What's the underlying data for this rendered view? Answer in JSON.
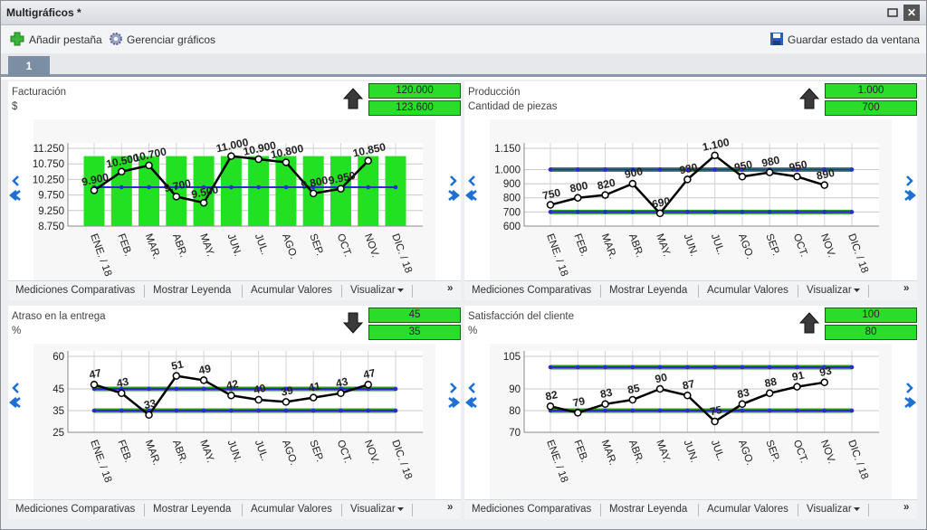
{
  "window": {
    "title": "Multigráficos *",
    "close": "✕"
  },
  "toolbar": {
    "add_tab": "Añadir pestaña",
    "manage": "Gerenciar gráficos",
    "save": "Guardar estado da ventana"
  },
  "tabs": [
    "1"
  ],
  "panel_toolbar": {
    "items": [
      "Mediciones Comparativas",
      "Mostrar Leyenda",
      "Acumular Valores",
      "Visualizar"
    ],
    "more": "»"
  },
  "chart_data": [
    {
      "type": "line",
      "title": "Facturación",
      "subtitle": "$",
      "arrow": "up",
      "targets": [
        "120.000",
        "123.600"
      ],
      "categories": [
        "ENE. / 18",
        "FEB.",
        "MAR.",
        "ABR.",
        "MAY.",
        "JUN.",
        "JUL.",
        "AGO.",
        "SEP.",
        "OCT.",
        "NOV.",
        "DIC. / 18"
      ],
      "bars": {
        "color": "#22e022",
        "values": [
          11000,
          11000,
          11000,
          11000,
          11000,
          11000,
          11000,
          11000,
          11000,
          11000,
          11000,
          11000
        ]
      },
      "series": [
        {
          "color": "#000000",
          "values": [
            9900,
            10500,
            10700,
            9700,
            9500,
            11000,
            10900,
            10800,
            9800,
            9950,
            10850,
            null
          ],
          "value_labels": [
            "9.900",
            "10.500",
            "10.700",
            "9.700",
            "9.500",
            "11.000",
            "10.900",
            "10.800",
            "9.800",
            "9.950",
            "10.850",
            null
          ]
        }
      ],
      "reference_lines": [
        10000
      ],
      "reference_color": "#2b2bd0",
      "reference_band_color": null,
      "ylim": [
        8750,
        11250
      ],
      "yticks": [
        {
          "value": 8750,
          "label": "8.750"
        },
        {
          "value": 9250,
          "label": "9.250"
        },
        {
          "value": 9750,
          "label": "9.750"
        },
        {
          "value": 10250,
          "label": "10.250"
        },
        {
          "value": 10750,
          "label": "10.750"
        },
        {
          "value": 11250,
          "label": "11.250"
        }
      ],
      "grid": true
    },
    {
      "type": "line",
      "title": "Producción",
      "subtitle": "Cantidad de piezas",
      "arrow": "up",
      "targets": [
        "1.000",
        "700"
      ],
      "categories": [
        "ENE. / 18",
        "FEB.",
        "MAR.",
        "ABR.",
        "MAY.",
        "JUN.",
        "JUL.",
        "AGO.",
        "SEP.",
        "OCT.",
        "NOV.",
        "DIC. / 18"
      ],
      "series": [
        {
          "color": "#000000",
          "values": [
            750,
            800,
            820,
            900,
            690,
            930,
            1100,
            950,
            980,
            950,
            890,
            null
          ],
          "value_labels": [
            "750",
            "800",
            "820",
            "900",
            "690",
            "930",
            "1.100",
            "950",
            "980",
            "950",
            "890",
            null
          ]
        }
      ],
      "reference_lines": [
        1000,
        700
      ],
      "reference_color": "#2b2bd0",
      "reference_band_color": "#2a9e2a",
      "ylim": [
        600,
        1150
      ],
      "yticks": [
        600,
        700,
        800,
        900,
        {
          "value": 1000,
          "label": "1.000"
        },
        {
          "value": 1150,
          "label": "1.150"
        }
      ],
      "grid": true
    },
    {
      "type": "line",
      "title": "Atraso en la entrega",
      "subtitle": "%",
      "arrow": "down",
      "targets": [
        "45",
        "35"
      ],
      "categories": [
        "ENE. / 18",
        "FEB.",
        "MAR.",
        "ABR.",
        "MAY.",
        "JUN.",
        "JUL.",
        "AGO.",
        "SEP.",
        "OCT.",
        "NOV.",
        "DIC. / 18"
      ],
      "series": [
        {
          "color": "#000000",
          "values": [
            47,
            43,
            33,
            51,
            49,
            42,
            40,
            39,
            41,
            43,
            47,
            null
          ]
        }
      ],
      "reference_lines": [
        45,
        35
      ],
      "reference_color": "#2b2bd0",
      "reference_band_color": "#2a9e2a",
      "ylim": [
        25,
        60
      ],
      "yticks": [
        25,
        35,
        45,
        60
      ],
      "grid": true
    },
    {
      "type": "line",
      "title": "Satisfacción del cliente",
      "subtitle": "%",
      "arrow": "up",
      "targets": [
        "100",
        "80"
      ],
      "categories": [
        "ENE. / 18",
        "FEB.",
        "MAR.",
        "ABR.",
        "MAY.",
        "JUN.",
        "JUL.",
        "AGO.",
        "SEP.",
        "OCT.",
        "NOV.",
        "DIC. / 18"
      ],
      "series": [
        {
          "color": "#000000",
          "values": [
            82,
            79,
            83,
            85,
            90,
            87,
            75,
            83,
            88,
            91,
            93,
            null
          ]
        }
      ],
      "reference_lines": [
        100,
        80
      ],
      "reference_color": "#2b2bd0",
      "reference_band_color": "#2a9e2a",
      "ylim": [
        70,
        105
      ],
      "yticks": [
        70,
        80,
        90,
        105
      ],
      "grid": true
    }
  ]
}
